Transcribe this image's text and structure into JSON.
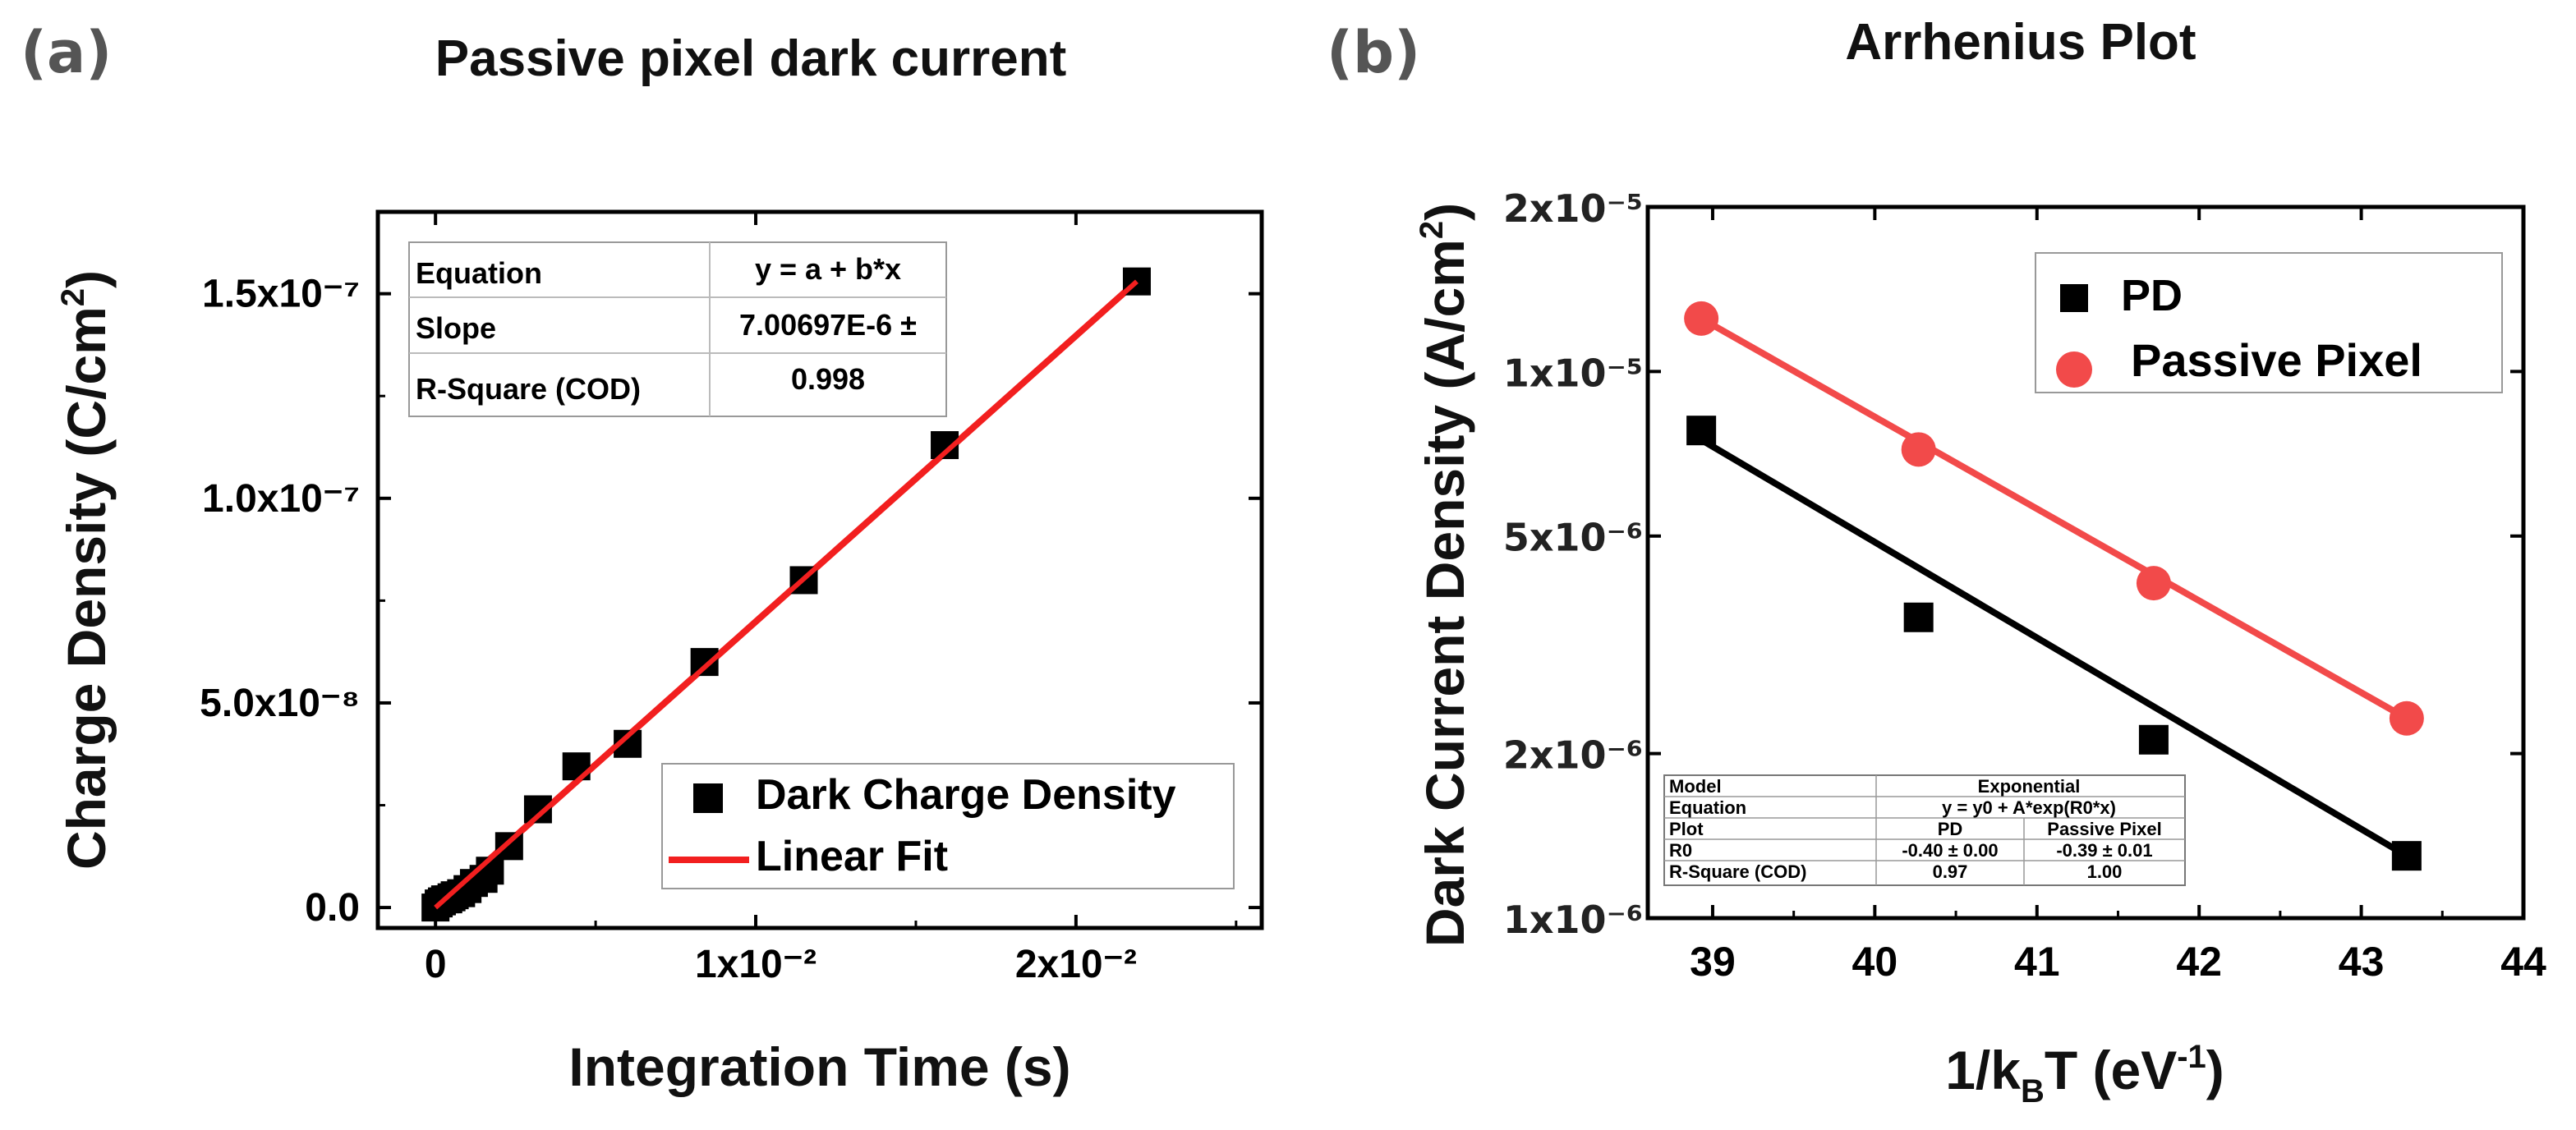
{
  "panel_labels": {
    "a": "(a)",
    "b": "(b)"
  },
  "chart_data": [
    {
      "id": "a",
      "type": "scatter",
      "title": "Passive pixel dark current",
      "xlabel": "Integration Time (s)",
      "ylabel": "Charge Density (C/cm²)",
      "xlim": [
        -0.0018,
        0.0258
      ],
      "ylim": [
        -5e-09,
        1.7e-07
      ],
      "xticks": [
        {
          "value": 0,
          "label": "0"
        },
        {
          "value": 0.01,
          "label": "1x10⁻²"
        },
        {
          "value": 0.02,
          "label": "2x10⁻²"
        }
      ],
      "yticks": [
        {
          "value": 0,
          "label": "0.0"
        },
        {
          "value": 5e-08,
          "label": "5.0x10⁻⁸"
        },
        {
          "value": 1e-07,
          "label": "1.0x10⁻⁷"
        },
        {
          "value": 1.5e-07,
          "label": "1.5x10⁻⁷"
        }
      ],
      "series": [
        {
          "name": "Dark Charge Density",
          "marker": "square",
          "color": "#000000",
          "x": [
            0.0,
            0.0001,
            0.0002,
            0.0003,
            0.0004,
            0.0005,
            0.0006,
            0.0008,
            0.001,
            0.0012,
            0.0015,
            0.0017,
            0.0023,
            0.0032,
            0.0044,
            0.006,
            0.0084,
            0.0115,
            0.0159,
            0.0219
          ],
          "y": [
            0.0,
            1e-09,
            1.5e-09,
            2e-09,
            2e-09,
            2.5e-09,
            3e-09,
            3.5e-09,
            4.5e-09,
            6e-09,
            7e-09,
            9e-09,
            1.5e-08,
            2.4e-08,
            3.45e-08,
            4e-08,
            6e-08,
            8e-08,
            1.13e-07,
            1.53e-07
          ]
        },
        {
          "name": "Linear Fit",
          "type": "line",
          "color": "#f21f1f",
          "x": [
            0.0,
            0.0219
          ],
          "y": [
            0.0,
            1.53e-07
          ]
        }
      ],
      "fit_table": [
        {
          "key": "Equation",
          "value": "y = a + b*x"
        },
        {
          "key": "Slope",
          "value": "7.00697E-6 ±"
        },
        {
          "key": "R-Square (COD)",
          "value": "0.998"
        }
      ],
      "legend_position": "bottom-right"
    },
    {
      "id": "b",
      "type": "scatter",
      "title": "Arrhenius Plot",
      "xlabel": "1/kBT (eV⁻¹)",
      "ylabel": "Dark Current Density (A/cm²)",
      "xscale": "linear",
      "yscale": "log",
      "xlim": [
        38.6,
        44.0
      ],
      "ylim": [
        1e-06,
        2e-05
      ],
      "xticks": [
        {
          "value": 39,
          "label": "39"
        },
        {
          "value": 40,
          "label": "40"
        },
        {
          "value": 41,
          "label": "41"
        },
        {
          "value": 42,
          "label": "42"
        },
        {
          "value": 43,
          "label": "43"
        },
        {
          "value": 44,
          "label": "44"
        }
      ],
      "yticks": [
        {
          "value": 1e-06,
          "label": "1x10⁻⁶"
        },
        {
          "value": 2e-06,
          "label": "2x10⁻⁶"
        },
        {
          "value": 5e-06,
          "label": "5x10⁻⁶"
        },
        {
          "value": 1e-05,
          "label": "1x10⁻⁵"
        },
        {
          "value": 2e-05,
          "label": "2x10⁻⁵"
        }
      ],
      "series": [
        {
          "name": "PD",
          "marker": "square",
          "color": "#000000",
          "x": [
            38.93,
            40.27,
            41.72,
            43.28
          ],
          "y": [
            7.8e-06,
            3.55e-06,
            2.12e-06,
            1.3e-06
          ],
          "fit_x": [
            38.93,
            43.28
          ],
          "fit_y": [
            7.5e-06,
            1.3e-06
          ]
        },
        {
          "name": "Passive Pixel",
          "marker": "circle",
          "color": "#f24a4a",
          "x": [
            38.93,
            40.27,
            41.72,
            43.28
          ],
          "y": [
            1.25e-05,
            7.2e-06,
            4.1e-06,
            2.32e-06
          ],
          "fit_x": [
            38.93,
            43.28
          ],
          "fit_y": [
            1.25e-05,
            2.32e-06
          ]
        }
      ],
      "fit_table": {
        "rows": [
          [
            "Model",
            "Exponential",
            ""
          ],
          [
            "Equation",
            "y = y0 + A*exp(R0*x)",
            ""
          ],
          [
            "Plot",
            "PD",
            "Passive Pixel"
          ],
          [
            "R0",
            "-0.40 ± 0.00",
            "-0.39 ± 0.01"
          ],
          [
            "R-Square (COD)",
            "0.97",
            "1.00"
          ]
        ]
      },
      "legend_position": "top-right"
    }
  ],
  "a_title": "Passive pixel dark current",
  "a_xlabel": "Integration Time (s)",
  "a_ylabel": "Charge Density (C/cm",
  "a_ylabel_sup": "2",
  "a_ylabel_close": ")",
  "b_title": "Arrhenius Plot",
  "b_ylabel": "Dark Current Density (A/cm",
  "b_ylabel_sup": "2",
  "b_ylabel_close": ")",
  "b_xlabel_main": "1/k",
  "b_xlabel_sub": "B",
  "b_xlabel_mid": "T (eV",
  "b_xlabel_sup": "-1",
  "b_xlabel_close": ")"
}
